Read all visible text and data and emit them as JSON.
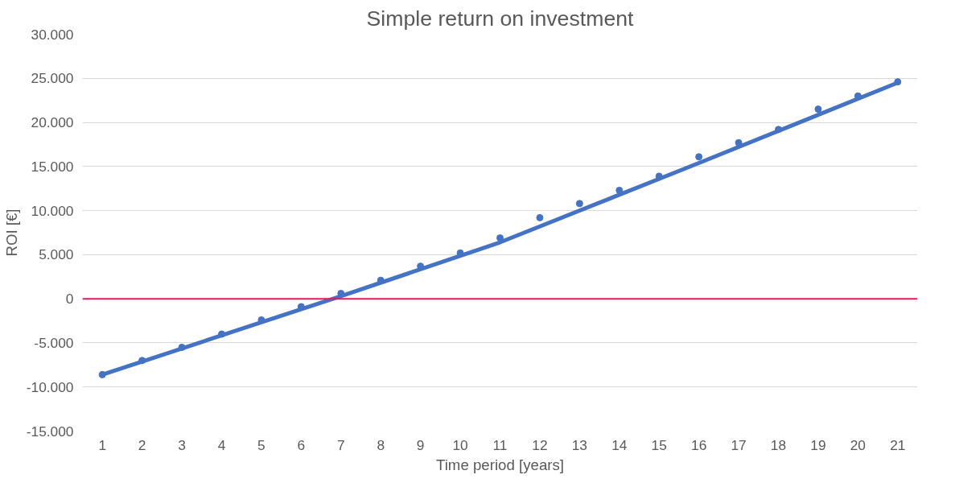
{
  "chart_data": {
    "type": "scatter",
    "title": "Simple return on investment",
    "xlabel": "Time period [years]",
    "ylabel": "ROI [€]",
    "xlim": [
      0.5,
      21.5
    ],
    "xticks": [
      1,
      2,
      3,
      4,
      5,
      6,
      7,
      8,
      9,
      10,
      11,
      12,
      13,
      14,
      15,
      16,
      17,
      18,
      19,
      20,
      21
    ],
    "ylim": [
      -15000,
      30000
    ],
    "yticks": [
      {
        "value": -15000,
        "label": "-15.000"
      },
      {
        "value": -10000,
        "label": "-10.000"
      },
      {
        "value": -5000,
        "label": "-5.000"
      },
      0,
      {
        "value": 5000,
        "label": "5.000"
      },
      {
        "value": 10000,
        "label": "10.000"
      },
      {
        "value": 15000,
        "label": "15.000"
      },
      {
        "value": 20000,
        "label": "20.000"
      },
      {
        "value": 25000,
        "label": "25.000"
      },
      {
        "value": 30000,
        "label": "30.000"
      }
    ],
    "grid": "y",
    "marker": "circle",
    "series": [
      {
        "color": "#4472c4",
        "x": [
          1,
          2,
          3,
          4,
          5,
          6,
          7,
          8,
          9,
          10,
          11,
          12,
          13,
          14,
          15,
          16,
          17,
          18,
          19,
          20,
          21
        ],
        "values": [
          -8600,
          -7000,
          -5500,
          -4000,
          -2400,
          -900,
          600,
          2100,
          3700,
          5200,
          6900,
          9200,
          10800,
          12300,
          13900,
          16100,
          17700,
          19200,
          21500,
          23000,
          24600
        ]
      },
      {
        "type": "line",
        "marker": "none",
        "color": "#4472c4",
        "x": [
          1,
          7,
          11,
          16,
          21
        ],
        "values": [
          -8600,
          300,
          6400,
          15400,
          24500
        ]
      }
    ],
    "ref_lines": [
      {
        "axis": "y",
        "value": 0,
        "color": "#e8185a"
      }
    ]
  }
}
